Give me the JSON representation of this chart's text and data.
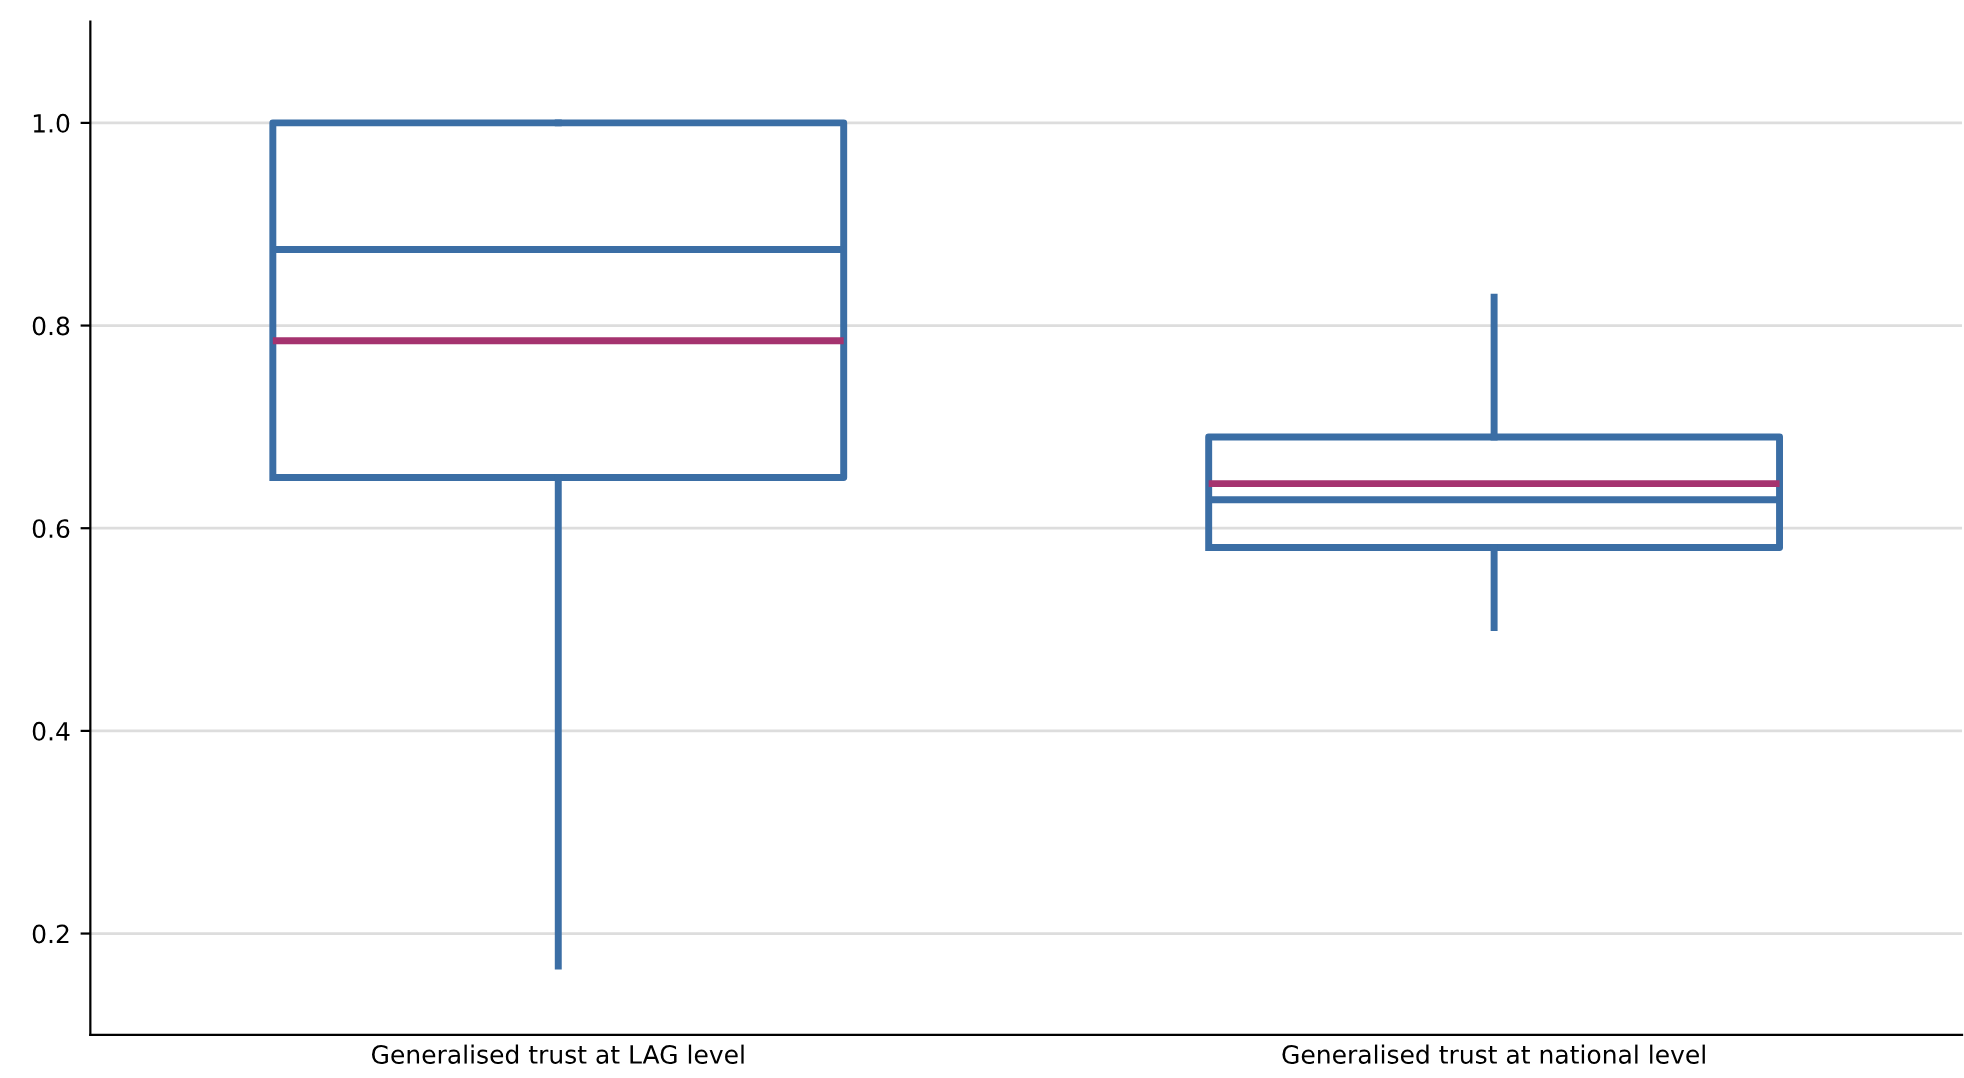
{
  "chart_data": {
    "type": "box",
    "categories": [
      "Generalised trust at LAG level",
      "Generalised trust at national level"
    ],
    "boxes": [
      {
        "low": 0.168,
        "q1": 0.65,
        "median": 0.875,
        "q3": 1.0,
        "high": 1.0,
        "mean": 0.785
      },
      {
        "low": 0.502,
        "q1": 0.581,
        "median": 0.628,
        "q3": 0.69,
        "high": 0.828,
        "mean": 0.644
      }
    ],
    "color": "#3b6ea5",
    "ylim": [
      0.1,
      1.1
    ],
    "yticks": [
      {
        "value": 0.2,
        "label": "0.2"
      },
      {
        "value": 0.4,
        "label": "0.4"
      },
      {
        "value": 0.6,
        "label": "0.6"
      },
      {
        "value": 0.8,
        "label": "0.8"
      },
      {
        "value": 1.0,
        "label": "1.0"
      }
    ],
    "grid": "y"
  }
}
